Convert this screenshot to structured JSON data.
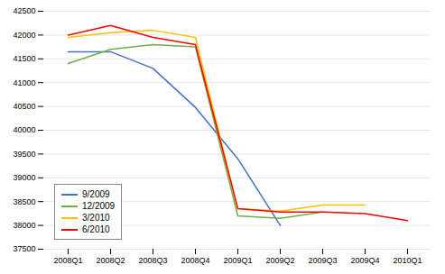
{
  "chart_data": {
    "type": "line",
    "categories": [
      "2008Q1",
      "2008Q2",
      "2008Q3",
      "2008Q4",
      "2009Q1",
      "2009Q2",
      "2009Q3",
      "2009Q4",
      "2010Q1"
    ],
    "series": [
      {
        "name": "9/2009",
        "color": "#4472C4",
        "values": [
          41650,
          41650,
          41300,
          40480,
          39400,
          38000,
          null,
          null,
          null
        ]
      },
      {
        "name": "12/2009",
        "color": "#70AD47",
        "values": [
          41400,
          41700,
          41800,
          41750,
          38200,
          38150,
          38280,
          null,
          null
        ]
      },
      {
        "name": "3/2010",
        "color": "#FFC000",
        "values": [
          41950,
          42050,
          42100,
          41950,
          38350,
          38300,
          38430,
          38430,
          null
        ]
      },
      {
        "name": "6/2010",
        "color": "#FF0000",
        "values": [
          42000,
          42200,
          41950,
          41800,
          38350,
          38280,
          38280,
          38250,
          38100
        ]
      }
    ],
    "ylim": [
      37500,
      42500
    ],
    "yticks": [
      37500,
      38000,
      38500,
      39000,
      39500,
      40000,
      40500,
      41000,
      41500,
      42000,
      42500
    ],
    "grid": true,
    "legend": "lower left"
  }
}
